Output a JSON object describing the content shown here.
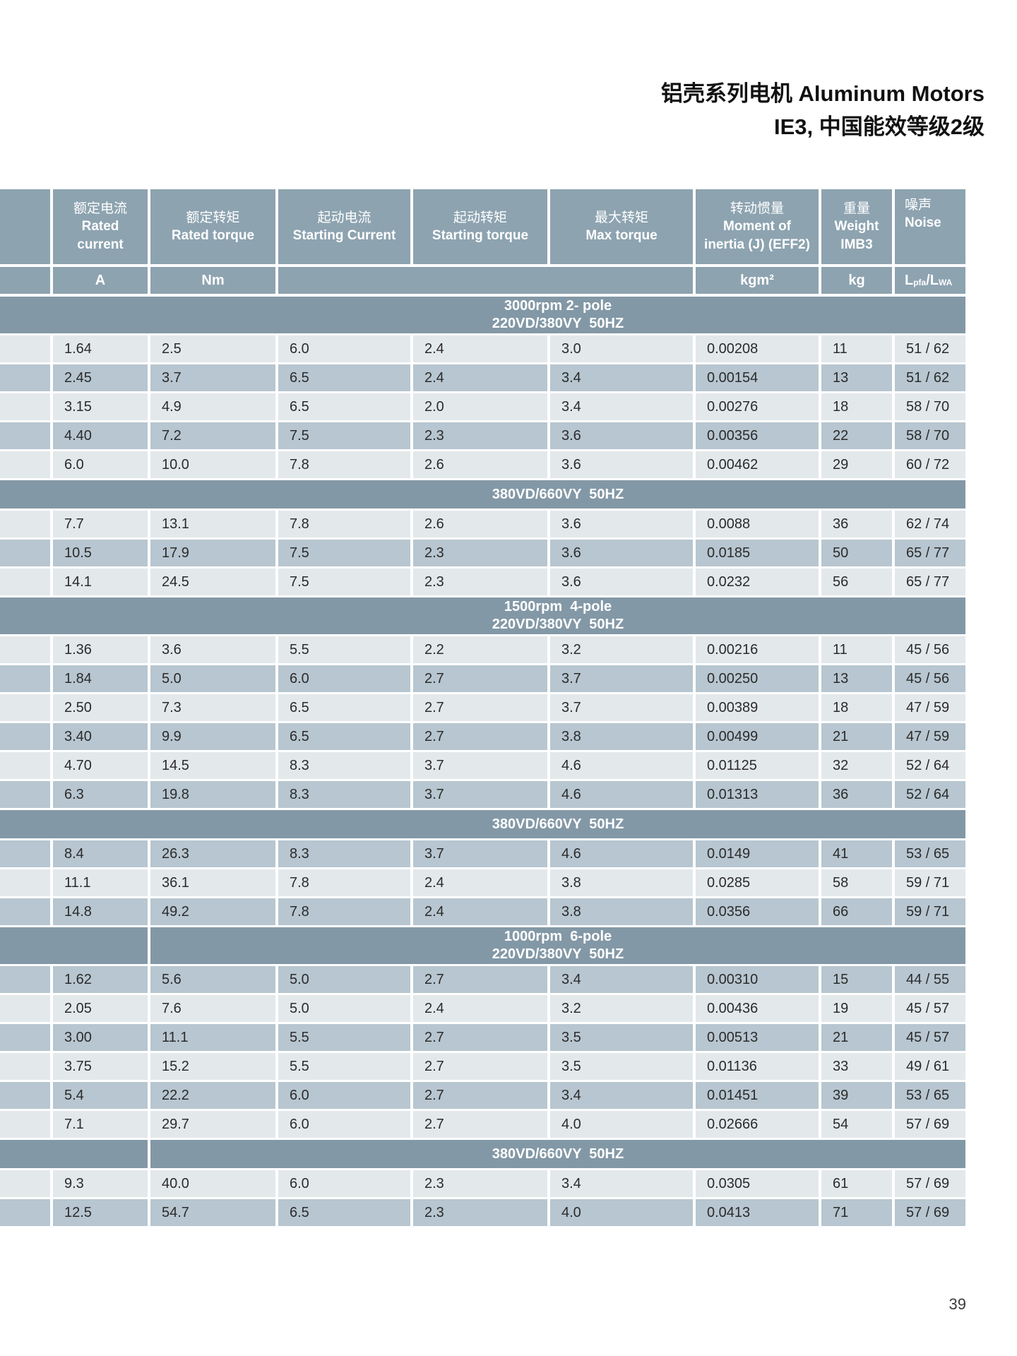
{
  "title": {
    "line1": "铝壳系列电机 Aluminum Motors",
    "line2": "IE3, 中国能效等级2级"
  },
  "page_number": "39",
  "colors": {
    "header_bg": "#8da3b0",
    "section_bg": "#8398a6",
    "row_light": "#e3e8eb",
    "row_medium": "#b7c6d0",
    "header_text": "#ffffff",
    "data_text": "#2b2b2b"
  },
  "table": {
    "columns": [
      {
        "lines": []
      },
      {
        "lines": [
          "额定电流",
          "Rated",
          "current"
        ]
      },
      {
        "lines": [
          "额定转矩",
          "Rated torque"
        ]
      },
      {
        "lines": [
          "起动电流",
          "Starting Current"
        ]
      },
      {
        "lines": [
          "起动转矩",
          "Starting torque"
        ]
      },
      {
        "lines": [
          "最大转矩",
          "Max torque"
        ]
      },
      {
        "lines": [
          "转动惯量",
          "Moment  of",
          "inertia (J) (EFF2)"
        ]
      },
      {
        "lines": [
          "重量",
          "Weight",
          "IMB3"
        ]
      },
      {
        "lines": [
          "噪声",
          "Noise"
        ]
      }
    ],
    "units": {
      "current": "A",
      "torque": "Nm",
      "inertia": "kgm²",
      "weight": "kg",
      "noise": {
        "base1": "L",
        "sub1": "pfa",
        "base2": "/L",
        "sub2": "WA"
      }
    },
    "sections": [
      {
        "label_lines": [
          "3000rpm 2- pole",
          "220VD/380VY  50HZ"
        ],
        "split": false,
        "rows": [
          {
            "shade": "light",
            "cells": [
              "1.64",
              "2.5",
              "6.0",
              "2.4",
              "3.0",
              "0.00208",
              "11",
              "51 / 62"
            ]
          },
          {
            "shade": "medium",
            "cells": [
              "2.45",
              "3.7",
              "6.5",
              "2.4",
              "3.4",
              "0.00154",
              "13",
              "51 / 62"
            ]
          },
          {
            "shade": "light",
            "cells": [
              "3.15",
              "4.9",
              "6.5",
              "2.0",
              "3.4",
              "0.00276",
              "18",
              "58 / 70"
            ]
          },
          {
            "shade": "medium",
            "cells": [
              "4.40",
              "7.2",
              "7.5",
              "2.3",
              "3.6",
              "0.00356",
              "22",
              "58 / 70"
            ]
          },
          {
            "shade": "light",
            "cells": [
              "6.0",
              "10.0",
              "7.8",
              "2.6",
              "3.6",
              "0.00462",
              "29",
              "60 / 72"
            ]
          }
        ]
      },
      {
        "label_lines": [
          "380VD/660VY  50HZ"
        ],
        "split": false,
        "rows": [
          {
            "shade": "light",
            "cells": [
              "7.7",
              "13.1",
              "7.8",
              "2.6",
              "3.6",
              "0.0088",
              "36",
              "62 / 74"
            ]
          },
          {
            "shade": "medium",
            "cells": [
              "10.5",
              "17.9",
              "7.5",
              "2.3",
              "3.6",
              "0.0185",
              "50",
              "65 / 77"
            ]
          },
          {
            "shade": "light",
            "cells": [
              "14.1",
              "24.5",
              "7.5",
              "2.3",
              "3.6",
              "0.0232",
              "56",
              "65 / 77"
            ]
          }
        ]
      },
      {
        "label_lines": [
          "1500rpm  4-pole",
          "220VD/380VY  50HZ"
        ],
        "split": false,
        "rows": [
          {
            "shade": "light",
            "cells": [
              "1.36",
              "3.6",
              "5.5",
              "2.2",
              "3.2",
              "0.00216",
              "11",
              "45 / 56"
            ]
          },
          {
            "shade": "medium",
            "cells": [
              "1.84",
              "5.0",
              "6.0",
              "2.7",
              "3.7",
              "0.00250",
              "13",
              "45 / 56"
            ]
          },
          {
            "shade": "light",
            "cells": [
              "2.50",
              "7.3",
              "6.5",
              "2.7",
              "3.7",
              "0.00389",
              "18",
              "47 / 59"
            ]
          },
          {
            "shade": "medium",
            "cells": [
              "3.40",
              "9.9",
              "6.5",
              "2.7",
              "3.8",
              "0.00499",
              "21",
              "47 / 59"
            ]
          },
          {
            "shade": "light",
            "cells": [
              "4.70",
              "14.5",
              "8.3",
              "3.7",
              "4.6",
              "0.01125",
              "32",
              "52 / 64"
            ]
          },
          {
            "shade": "medium",
            "cells": [
              "6.3",
              "19.8",
              "8.3",
              "3.7",
              "4.6",
              "0.01313",
              "36",
              "52 / 64"
            ]
          }
        ]
      },
      {
        "label_lines": [
          "380VD/660VY  50HZ"
        ],
        "split": false,
        "rows": [
          {
            "shade": "medium",
            "cells": [
              "8.4",
              "26.3",
              "8.3",
              "3.7",
              "4.6",
              "0.0149",
              "41",
              "53 / 65"
            ]
          },
          {
            "shade": "light",
            "cells": [
              "11.1",
              "36.1",
              "7.8",
              "2.4",
              "3.8",
              "0.0285",
              "58",
              "59 / 71"
            ]
          },
          {
            "shade": "medium",
            "cells": [
              "14.8",
              "49.2",
              "7.8",
              "2.4",
              "3.8",
              "0.0356",
              "66",
              "59 / 71"
            ]
          }
        ]
      },
      {
        "label_lines": [
          "1000rpm  6-pole",
          "220VD/380VY  50HZ"
        ],
        "split": true,
        "rows": [
          {
            "shade": "medium",
            "cells": [
              "1.62",
              "5.6",
              "5.0",
              "2.7",
              "3.4",
              "0.00310",
              "15",
              "44 / 55"
            ]
          },
          {
            "shade": "light",
            "cells": [
              "2.05",
              "7.6",
              "5.0",
              "2.4",
              "3.2",
              "0.00436",
              "19",
              "45 / 57"
            ]
          },
          {
            "shade": "medium",
            "cells": [
              "3.00",
              "11.1",
              "5.5",
              "2.7",
              "3.5",
              "0.00513",
              "21",
              "45 / 57"
            ]
          },
          {
            "shade": "light",
            "cells": [
              "3.75",
              "15.2",
              "5.5",
              "2.7",
              "3.5",
              "0.01136",
              "33",
              "49 / 61"
            ]
          },
          {
            "shade": "medium",
            "cells": [
              "5.4",
              "22.2",
              "6.0",
              "2.7",
              "3.4",
              "0.01451",
              "39",
              "53 / 65"
            ]
          },
          {
            "shade": "light",
            "cells": [
              "7.1",
              "29.7",
              "6.0",
              "2.7",
              "4.0",
              "0.02666",
              "54",
              "57 / 69"
            ]
          }
        ]
      },
      {
        "label_lines": [
          "380VD/660VY  50HZ"
        ],
        "split": true,
        "rows": [
          {
            "shade": "light",
            "cells": [
              "9.3",
              "40.0",
              "6.0",
              "2.3",
              "3.4",
              "0.0305",
              "61",
              "57 / 69"
            ]
          },
          {
            "shade": "medium",
            "cells": [
              "12.5",
              "54.7",
              "6.5",
              "2.3",
              "4.0",
              "0.0413",
              "71",
              "57 / 69"
            ]
          }
        ]
      }
    ]
  }
}
